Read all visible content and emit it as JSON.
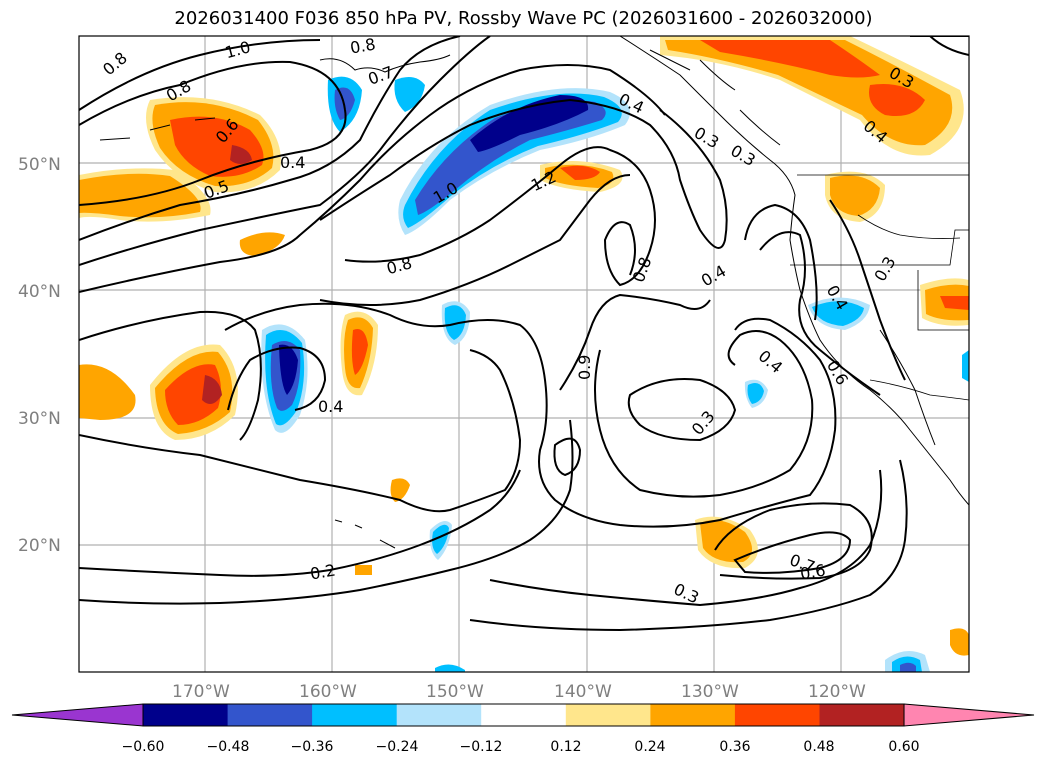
{
  "title": "2026031400 F036 850 hPa PV, Rossby Wave PC (2026031600 - 2026032000)",
  "axes": {
    "lon_labels": [
      "170°W",
      "160°W",
      "150°W",
      "140°W",
      "130°W",
      "120°W"
    ],
    "lat_labels": [
      "50°N",
      "40°N",
      "30°N",
      "20°N"
    ]
  },
  "contour_labels": [
    "0.8",
    "1.0",
    "0.8",
    "0.7",
    "0.8",
    "0.6",
    "0.5",
    "0.4",
    "0.4",
    "1.0",
    "1.2",
    "0.3",
    "0.8",
    "0.8",
    "0.4",
    "0.3",
    "0.4",
    "0.6",
    "0.9",
    "0.4",
    "0.3",
    "0.2",
    "0.3",
    "0.7",
    "0.6",
    "0.4",
    "0.4",
    "0.3",
    "0.3"
  ],
  "colorbar": {
    "ticks": [
      "−0.60",
      "−0.48",
      "−0.36",
      "−0.24",
      "−0.12",
      "0.12",
      "0.24",
      "0.36",
      "0.48",
      "0.60"
    ],
    "colors": [
      "#9a35d0",
      "#00008b",
      "#3355cc",
      "#00bfff",
      "#b3e3fb",
      "#ffffff",
      "#ffe68c",
      "#ffa500",
      "#ff4500",
      "#b22222",
      "#ff85b0"
    ]
  }
}
